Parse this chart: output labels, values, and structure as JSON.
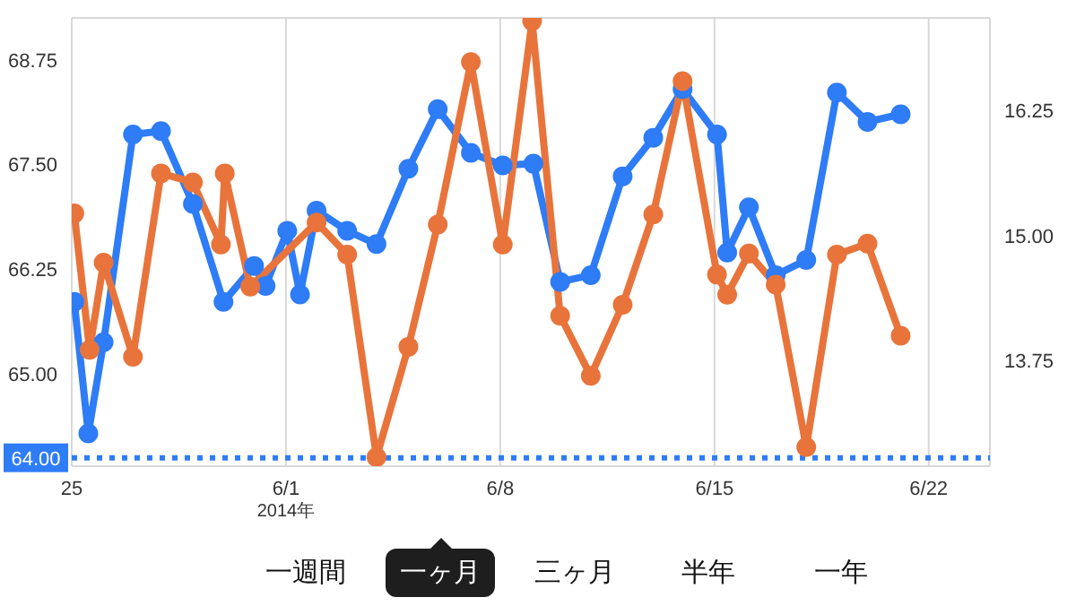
{
  "chart_data": {
    "type": "line",
    "xlim": [
      "2014-05-25",
      "2014-06-24"
    ],
    "xticks": [
      {
        "value": "2014-05-25",
        "label": "25"
      },
      {
        "value": "2014-06-01",
        "label": "6/1"
      },
      {
        "value": "2014-06-08",
        "label": "6/8"
      },
      {
        "value": "2014-06-15",
        "label": "6/15"
      },
      {
        "value": "2014-06-22",
        "label": "6/22"
      }
    ],
    "ylim": [
      63.9,
      69.25
    ],
    "yticks": [
      {
        "value": 65,
        "label": "65.00"
      },
      {
        "value": 66.25,
        "label": "66.25"
      },
      {
        "value": 67.5,
        "label": "67.50"
      },
      {
        "value": 68.75,
        "label": "68.75"
      }
    ],
    "y2lim": [
      12.7,
      17.17
    ],
    "y2ticks": [
      {
        "value": 13.75,
        "label": "13.75"
      },
      {
        "value": 15,
        "label": "15.00"
      },
      {
        "value": 16.25,
        "label": "16.25"
      }
    ],
    "grid": true,
    "marker": "circle",
    "line_style": "solid",
    "series": [
      {
        "color": "#2e7cf6",
        "x": [
          "2014-05-25T02:00",
          "2014-05-25T13:00",
          "2014-05-26T01:00",
          "2014-05-27T00:00",
          "2014-05-27T22:00",
          "2014-05-28T23:00",
          "2014-05-29T23:00",
          "2014-05-30T23:00",
          "2014-05-31T08:00",
          "2014-06-01T01:00",
          "2014-06-01T11:00",
          "2014-06-02T00:00",
          "2014-06-03T00:00",
          "2014-06-03T23:00",
          "2014-06-05T00:00",
          "2014-06-05T23:00",
          "2014-06-07T01:00",
          "2014-06-08T02:00",
          "2014-06-09T02:00",
          "2014-06-09T23:00",
          "2014-06-10T23:00",
          "2014-06-12T00:00",
          "2014-06-13T00:00",
          "2014-06-13T23:00",
          "2014-06-15T02:00",
          "2014-06-15T10:00",
          "2014-06-16T03:00",
          "2014-06-17T00:00",
          "2014-06-18T00:00",
          "2014-06-19T00:00",
          "2014-06-20T00:00",
          "2014-06-21T02:00"
        ],
        "values": [
          65.86,
          64.29,
          65.38,
          67.86,
          67.9,
          67.03,
          65.86,
          66.29,
          66.05,
          66.71,
          65.95,
          66.95,
          66.71,
          66.55,
          67.45,
          68.16,
          67.64,
          67.49,
          67.51,
          66.1,
          66.18,
          67.36,
          67.82,
          68.4,
          67.86,
          66.45,
          66.99,
          66.18,
          66.36,
          68.36,
          68.01,
          68.1
        ]
      },
      {
        "color": "#e8743b",
        "axis": "y2",
        "x": [
          "2014-05-25T02:00",
          "2014-05-25T14:00",
          "2014-05-26T01:00",
          "2014-05-27T00:00",
          "2014-05-27T22:00",
          "2014-05-28T23:00",
          "2014-05-29T21:00",
          "2014-05-30T00:00",
          "2014-05-30T20:00",
          "2014-06-02T00:00",
          "2014-06-03T00:00",
          "2014-06-03T23:00",
          "2014-06-05T00:00",
          "2014-06-05T23:00",
          "2014-06-07T01:00",
          "2014-06-08T02:00",
          "2014-06-09T01:00",
          "2014-06-09T23:00",
          "2014-06-10T23:00",
          "2014-06-12T00:00",
          "2014-06-13T00:00",
          "2014-06-13T23:00",
          "2014-06-15T02:00",
          "2014-06-15T10:00",
          "2014-06-16T03:00",
          "2014-06-17T00:00",
          "2014-06-18T00:00",
          "2014-06-19T00:00",
          "2014-06-20T00:00",
          "2014-06-21T02:00"
        ],
        "values": [
          15.22,
          13.86,
          14.73,
          13.79,
          15.62,
          15.53,
          14.91,
          15.62,
          14.49,
          15.13,
          14.81,
          12.79,
          13.89,
          15.11,
          16.73,
          14.91,
          17.14,
          14.2,
          13.6,
          14.31,
          15.21,
          16.54,
          14.61,
          14.41,
          14.82,
          14.51,
          12.89,
          14.81,
          14.92,
          14.0
        ]
      }
    ],
    "ref_lines": [
      {
        "axis": "y",
        "value": 64,
        "label": "64.00",
        "color": "#2e7cf6",
        "line_style": "dotted"
      }
    ],
    "xlabel": "2014年",
    "annotations": [
      "一週間",
      "一ヶ月",
      "三ヶ月",
      "半年",
      "一年"
    ]
  }
}
